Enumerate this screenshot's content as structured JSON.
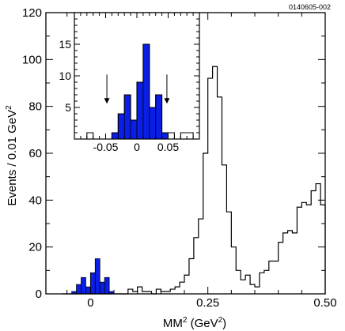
{
  "figure_code": "0140605-002",
  "chart_data": [
    {
      "type": "bar",
      "role": "main",
      "xlabel": "MM",
      "xlabel_sup": "2",
      "xlabel_unit_open": " (GeV",
      "xlabel_unit_sup": "2",
      "xlabel_unit_close": ")",
      "ylabel": "Events / 0.01 GeV",
      "ylabel_sup": "2",
      "xlim": [
        -0.095,
        0.5
      ],
      "ylim": [
        0,
        120
      ],
      "xticks": [
        {
          "value": 0,
          "label": "0"
        },
        {
          "value": 0.25,
          "label": "0.25"
        },
        {
          "value": 0.5,
          "label": "0.50"
        }
      ],
      "yticks": [
        {
          "value": 0,
          "label": "0"
        },
        {
          "value": 20,
          "label": "20"
        },
        {
          "value": 40,
          "label": "40"
        },
        {
          "value": 60,
          "label": "60"
        },
        {
          "value": 80,
          "label": "80"
        },
        {
          "value": 100,
          "label": "100"
        },
        {
          "value": 120,
          "label": "120"
        }
      ],
      "grid": false,
      "histogram_outline": {
        "bin_edges": [
          -0.06,
          0.08,
          0.09,
          0.1,
          0.11,
          0.12,
          0.13,
          0.14,
          0.15,
          0.16,
          0.17,
          0.18,
          0.19,
          0.2,
          0.21,
          0.22,
          0.23,
          0.24,
          0.25,
          0.26,
          0.27,
          0.28,
          0.29,
          0.3,
          0.31,
          0.32,
          0.33,
          0.34,
          0.35,
          0.36,
          0.37,
          0.38,
          0.39,
          0.4,
          0.41,
          0.42,
          0.43,
          0.44,
          0.45,
          0.46,
          0.47,
          0.48,
          0.49,
          0.5
        ],
        "counts": [
          0,
          2,
          1,
          3,
          1,
          1,
          0,
          2,
          1,
          1,
          2,
          3,
          5,
          8,
          15,
          24,
          32,
          60,
          92,
          97,
          84,
          55,
          35,
          20,
          10,
          6,
          8,
          4,
          3,
          9,
          10,
          14,
          14,
          22,
          26,
          27,
          26,
          37,
          39,
          38,
          44,
          47,
          38
        ]
      },
      "highlighted_signal": {
        "color": "#0a1ee6",
        "bin_edges": [
          -0.04,
          -0.03,
          -0.02,
          -0.01,
          0.0,
          0.01,
          0.02,
          0.03,
          0.04,
          0.05
        ],
        "counts": [
          1,
          4,
          7,
          3,
          9,
          15,
          5,
          7,
          1
        ]
      }
    },
    {
      "type": "bar",
      "role": "inset",
      "xlim": [
        -0.1,
        0.1
      ],
      "ylim": [
        0,
        20
      ],
      "xticks": [
        {
          "value": -0.05,
          "label": "-0.05"
        },
        {
          "value": 0,
          "label": "0"
        },
        {
          "value": 0.05,
          "label": "0.05"
        }
      ],
      "yticks": [
        {
          "value": 5,
          "label": "5"
        },
        {
          "value": 10,
          "label": "10"
        },
        {
          "value": 15,
          "label": "15"
        }
      ],
      "grid": false,
      "histogram_outline": {
        "bin_edges": [
          -0.1,
          -0.09,
          -0.08,
          -0.07,
          -0.06,
          -0.05,
          -0.04,
          -0.03,
          -0.02,
          -0.01,
          0.0,
          0.01,
          0.02,
          0.03,
          0.04,
          0.05,
          0.06,
          0.07,
          0.08,
          0.09,
          0.1
        ],
        "counts": [
          0,
          0,
          1,
          0,
          0,
          0,
          1,
          4,
          7,
          3,
          9,
          15,
          5,
          7,
          1,
          1,
          0,
          1,
          1,
          0
        ]
      },
      "highlighted_signal": {
        "color": "#0a1ee6",
        "bin_edges": [
          -0.04,
          -0.03,
          -0.02,
          -0.01,
          0.0,
          0.01,
          0.02,
          0.03,
          0.04,
          0.05
        ],
        "counts": [
          1,
          4,
          7,
          3,
          9,
          15,
          5,
          7,
          1
        ]
      },
      "selection_arrows": [
        {
          "x": -0.048,
          "y_from": 10.2,
          "y_to": 5.6
        },
        {
          "x": 0.048,
          "y_from": 10.2,
          "y_to": 5.6
        }
      ]
    }
  ]
}
